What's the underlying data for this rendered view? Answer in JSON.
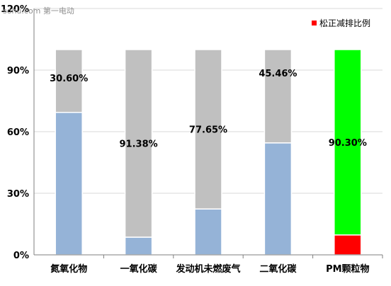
{
  "watermark": "sohu.com 第一电动",
  "chart_data": {
    "type": "bar",
    "stacked": true,
    "categories": [
      "氮氧化物",
      "一氧化碳",
      "发动机未燃废气",
      "二氧化碳",
      "PM颗粒物"
    ],
    "ylim": [
      0,
      120
    ],
    "yticks": [
      "0%",
      "30%",
      "60%",
      "90%",
      "120%"
    ],
    "grid": true,
    "legend_position": "top-right",
    "legend": [
      {
        "label": "松正减排比例",
        "color": "#ff0000"
      }
    ],
    "series": [
      {
        "values": [
          69.4,
          8.62,
          22.35,
          54.54,
          9.7
        ],
        "colors": [
          "#95b3d7",
          "#95b3d7",
          "#95b3d7",
          "#95b3d7",
          "#ff0000"
        ]
      },
      {
        "values": [
          30.6,
          91.38,
          77.65,
          45.46,
          90.3
        ],
        "colors": [
          "#c0c0c0",
          "#c0c0c0",
          "#c0c0c0",
          "#c0c0c0",
          "#00ff00"
        ]
      }
    ],
    "data_labels": [
      "30.60%",
      "91.38%",
      "77.65%",
      "45.46%",
      "90.30%"
    ]
  }
}
